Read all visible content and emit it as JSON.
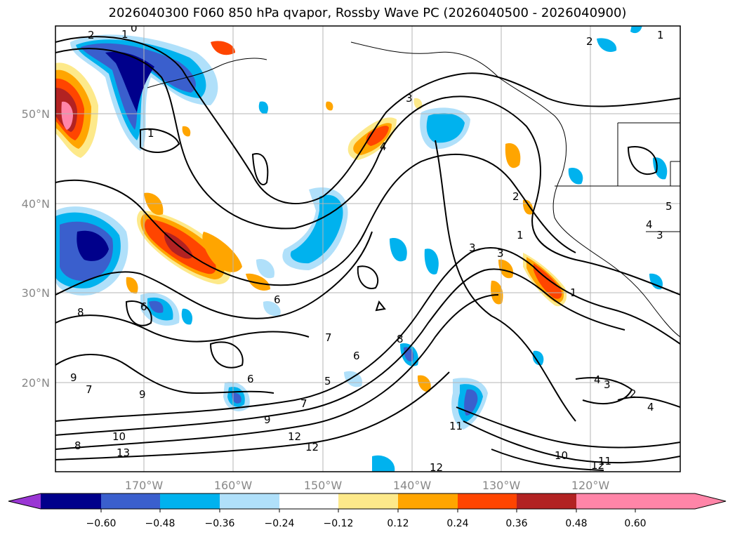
{
  "title": "2026040300 F060 850 hPa qvapor, Rossby Wave PC (2026040500 - 2026040900)",
  "lat_labels": [
    "50°N",
    "40°N",
    "30°N",
    "20°N"
  ],
  "lon_labels": [
    "170°W",
    "160°W",
    "150°W",
    "140°W",
    "130°W",
    "120°W"
  ],
  "colorbar": {
    "colors": [
      "#9a36d4",
      "#00008b",
      "#3a5fcd",
      "#00b2ee",
      "#b0e0fa",
      "#ffffff",
      "#fde98a",
      "#ffa500",
      "#ff4500",
      "#b22222",
      "#ff85a8"
    ],
    "tick_labels": [
      "−0.60",
      "−0.48",
      "−0.36",
      "−0.24",
      "−0.12",
      "0.12",
      "0.24",
      "0.36",
      "0.48",
      "0.60"
    ]
  },
  "contour_labels": [
    "2",
    "1",
    "0",
    "3",
    "4",
    "2",
    "1",
    "5",
    "4",
    "3",
    "6",
    "8",
    "9",
    "7",
    "9",
    "6",
    "7",
    "6",
    "5",
    "7",
    "9",
    "8",
    "10",
    "13",
    "12",
    "12",
    "6",
    "3",
    "3",
    "1",
    "2",
    "1",
    "8",
    "11",
    "4",
    "3",
    "2",
    "4",
    "10",
    "12",
    "11",
    "12",
    "1"
  ]
}
